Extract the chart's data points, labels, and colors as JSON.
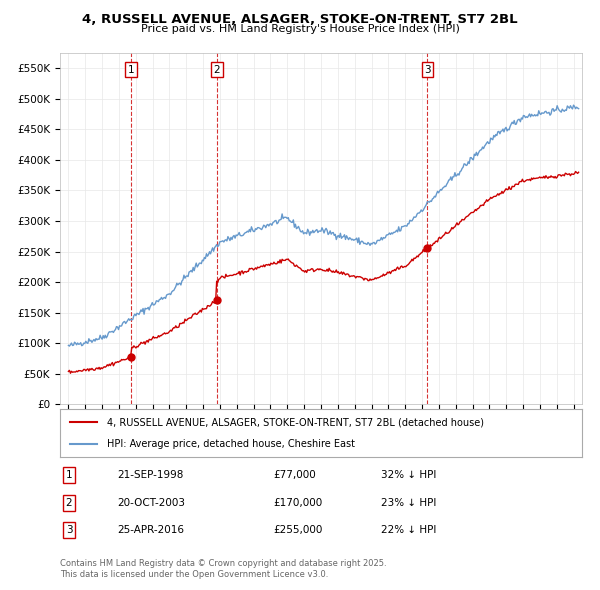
{
  "title": "4, RUSSELL AVENUE, ALSAGER, STOKE-ON-TRENT, ST7 2BL",
  "subtitle": "Price paid vs. HM Land Registry's House Price Index (HPI)",
  "legend_line1": "4, RUSSELL AVENUE, ALSAGER, STOKE-ON-TRENT, ST7 2BL (detached house)",
  "legend_line2": "HPI: Average price, detached house, Cheshire East",
  "sale_color": "#cc0000",
  "hpi_color": "#6699cc",
  "purchases": [
    {
      "label": "1",
      "date": "21-SEP-1998",
      "price": 77000,
      "pct": "32% ↓ HPI",
      "year": 1998.72
    },
    {
      "label": "2",
      "date": "20-OCT-2003",
      "price": 170000,
      "pct": "23% ↓ HPI",
      "year": 2003.8
    },
    {
      "label": "3",
      "date": "25-APR-2016",
      "price": 255000,
      "pct": "22% ↓ HPI",
      "year": 2016.32
    }
  ],
  "footer_line1": "Contains HM Land Registry data © Crown copyright and database right 2025.",
  "footer_line2": "This data is licensed under the Open Government Licence v3.0.",
  "ylim": [
    0,
    575000
  ],
  "yticks": [
    0,
    50000,
    100000,
    150000,
    200000,
    250000,
    300000,
    350000,
    400000,
    450000,
    500000,
    550000
  ],
  "xlim_start": 1994.5,
  "xlim_end": 2025.5
}
